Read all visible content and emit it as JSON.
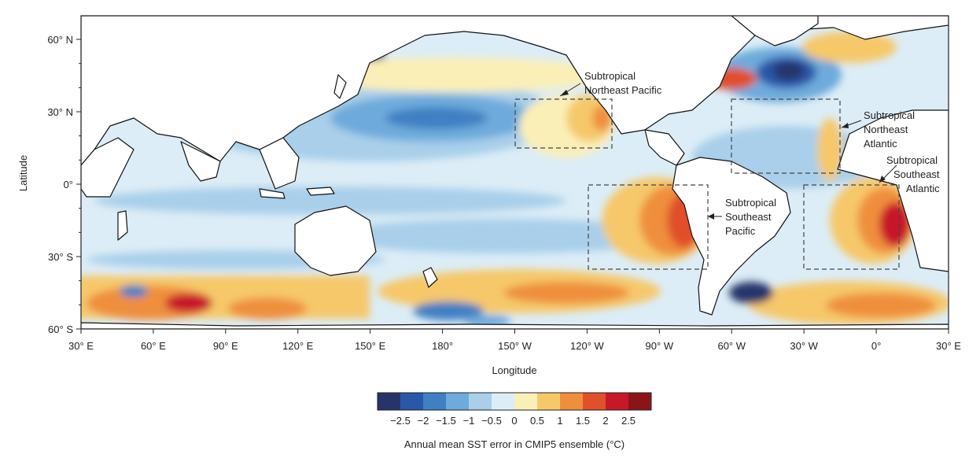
{
  "map": {
    "xlabel": "Longitude",
    "ylabel": "Latitude",
    "lon_ticks": [
      "30° E",
      "60° E",
      "90° E",
      "120° E",
      "150° E",
      "180°",
      "150° W",
      "120° W",
      "90° W",
      "60° W",
      "30° W",
      "0°",
      "30° E"
    ],
    "lat_ticks": [
      "60° N",
      "30° N",
      "0°",
      "30° S",
      "60° S"
    ],
    "regions": [
      {
        "lines": [
          "Subtropical",
          "Northeast Pacific"
        ]
      },
      {
        "lines": [
          "Subtropical",
          "Northeast",
          "Atlantic"
        ]
      },
      {
        "lines": [
          "Subtropical",
          "Southeast",
          "Atlantic"
        ]
      },
      {
        "lines": [
          "Subtropical",
          "Southeast",
          "Pacific"
        ]
      }
    ]
  },
  "colorbar": {
    "title": "Annual mean SST error in CMIP5 ensemble (°C)",
    "tick_labels": [
      "−2.5",
      "−2",
      "−1.5",
      "−1",
      "−0.5",
      "0",
      "0.5",
      "1",
      "1.5",
      "2",
      "2.5"
    ],
    "colors": [
      "#27346a",
      "#2a57a8",
      "#3f80c3",
      "#6eaadb",
      "#a9cfea",
      "#dcedf7",
      "#fbefb8",
      "#f6c86a",
      "#ef8f3c",
      "#e0502b",
      "#c7182a",
      "#8b1419"
    ]
  },
  "colors": {
    "land": "#ffffff",
    "coast": "#111111",
    "neutral_ocean": "#dcedf7"
  }
}
